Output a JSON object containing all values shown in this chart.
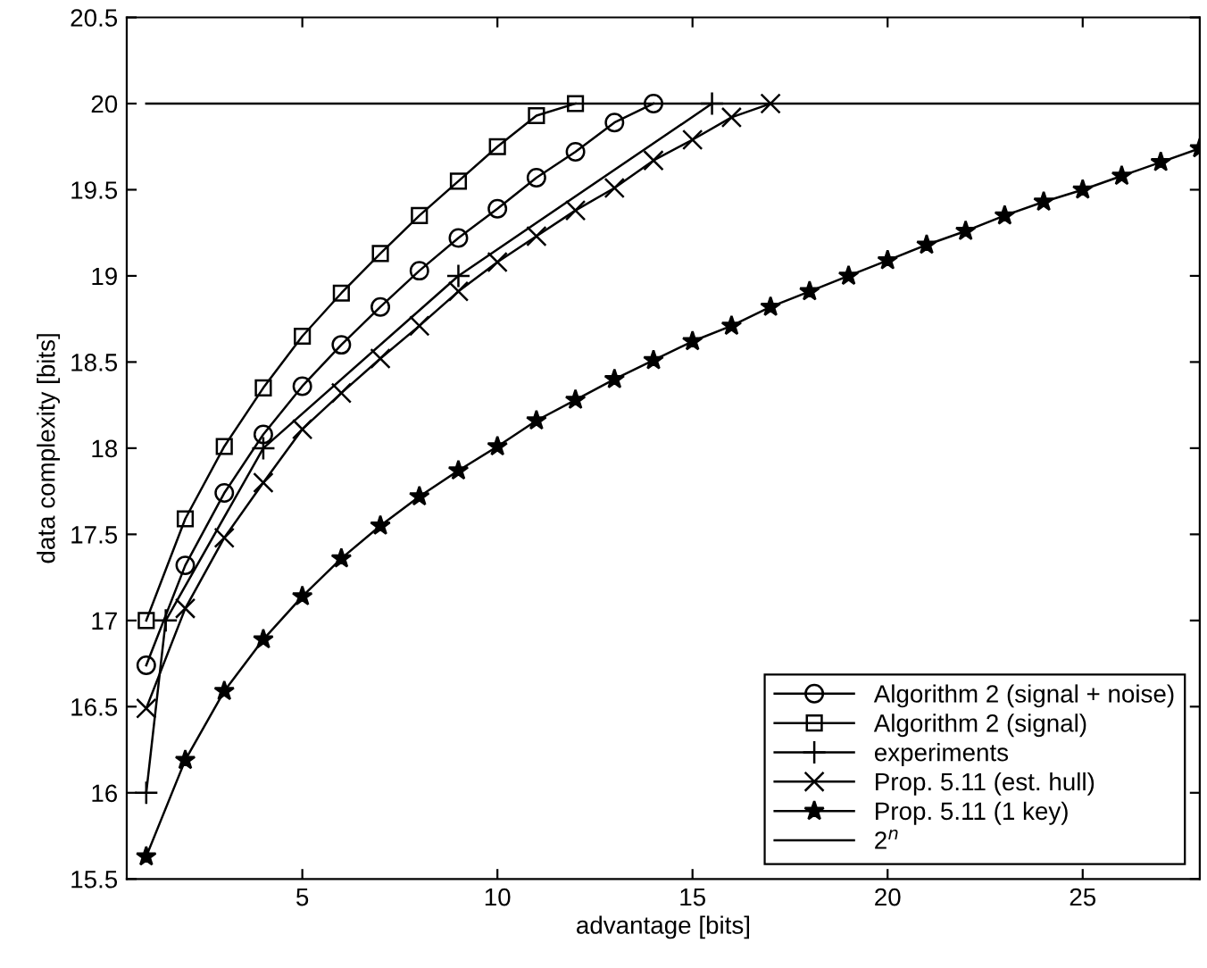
{
  "chart_data": {
    "type": "line",
    "xlabel": "advantage [bits]",
    "ylabel": "data complexity [bits]",
    "xlim": [
      0.5,
      28
    ],
    "ylim": [
      15.5,
      20.5
    ],
    "xticks": [
      5,
      10,
      15,
      20,
      25
    ],
    "yticks": [
      15.5,
      16,
      16.5,
      17,
      17.5,
      18,
      18.5,
      19,
      19.5,
      20,
      20.5
    ],
    "grid": false,
    "legend": "bottom right",
    "series": [
      {
        "name": "Algorithm 2 (signal + noise)",
        "color": "#000000",
        "marker": "circle",
        "x": [
          1,
          2,
          3,
          4,
          5,
          6,
          7,
          8,
          9,
          10,
          11,
          12,
          13,
          14
        ],
        "values": [
          16.74,
          17.32,
          17.74,
          18.08,
          18.36,
          18.6,
          18.82,
          19.03,
          19.22,
          19.39,
          19.57,
          19.72,
          19.89,
          20
        ]
      },
      {
        "name": "Algorithm 2 (signal)",
        "color": "#000000",
        "marker": "square",
        "x": [
          1,
          2,
          3,
          4,
          5,
          6,
          7,
          8,
          9,
          10,
          11,
          12
        ],
        "values": [
          17,
          17.59,
          18.01,
          18.35,
          18.65,
          18.9,
          19.13,
          19.35,
          19.55,
          19.75,
          19.93,
          20
        ]
      },
      {
        "name": "experiments",
        "color": "#000000",
        "marker": "plus",
        "x": [
          1,
          1.5,
          4,
          9,
          15.5
        ],
        "values": [
          16,
          17,
          18,
          19,
          20
        ]
      },
      {
        "name": "Prop. 5.11 (est. hull)",
        "color": "#000000",
        "marker": "cross",
        "x": [
          1,
          2,
          3,
          4,
          5,
          6,
          7,
          8,
          9,
          10,
          11,
          12,
          13,
          14,
          15,
          16,
          17
        ],
        "values": [
          16.49,
          17.07,
          17.48,
          17.8,
          18.11,
          18.32,
          18.52,
          18.71,
          18.91,
          19.08,
          19.23,
          19.38,
          19.51,
          19.67,
          19.79,
          19.92,
          20
        ]
      },
      {
        "name": "Prop. 5.11 (1 key)",
        "color": "#000000",
        "marker": "star",
        "x": [
          1,
          2,
          3,
          4,
          5,
          6,
          7,
          8,
          9,
          10,
          11,
          12,
          13,
          14,
          15,
          16,
          17,
          18,
          19,
          20,
          21,
          22,
          23,
          24,
          25,
          26,
          27,
          28
        ],
        "values": [
          15.63,
          16.19,
          16.59,
          16.89,
          17.14,
          17.36,
          17.55,
          17.72,
          17.87,
          18.01,
          18.16,
          18.28,
          18.4,
          18.51,
          18.62,
          18.71,
          18.82,
          18.91,
          19,
          19.09,
          19.18,
          19.26,
          19.35,
          19.43,
          19.5,
          19.58,
          19.66,
          19.74
        ]
      },
      {
        "name": "2$^{n}$",
        "color": "#000000",
        "marker": "none",
        "x": [
          1,
          28
        ],
        "values": [
          20,
          20
        ]
      }
    ]
  }
}
